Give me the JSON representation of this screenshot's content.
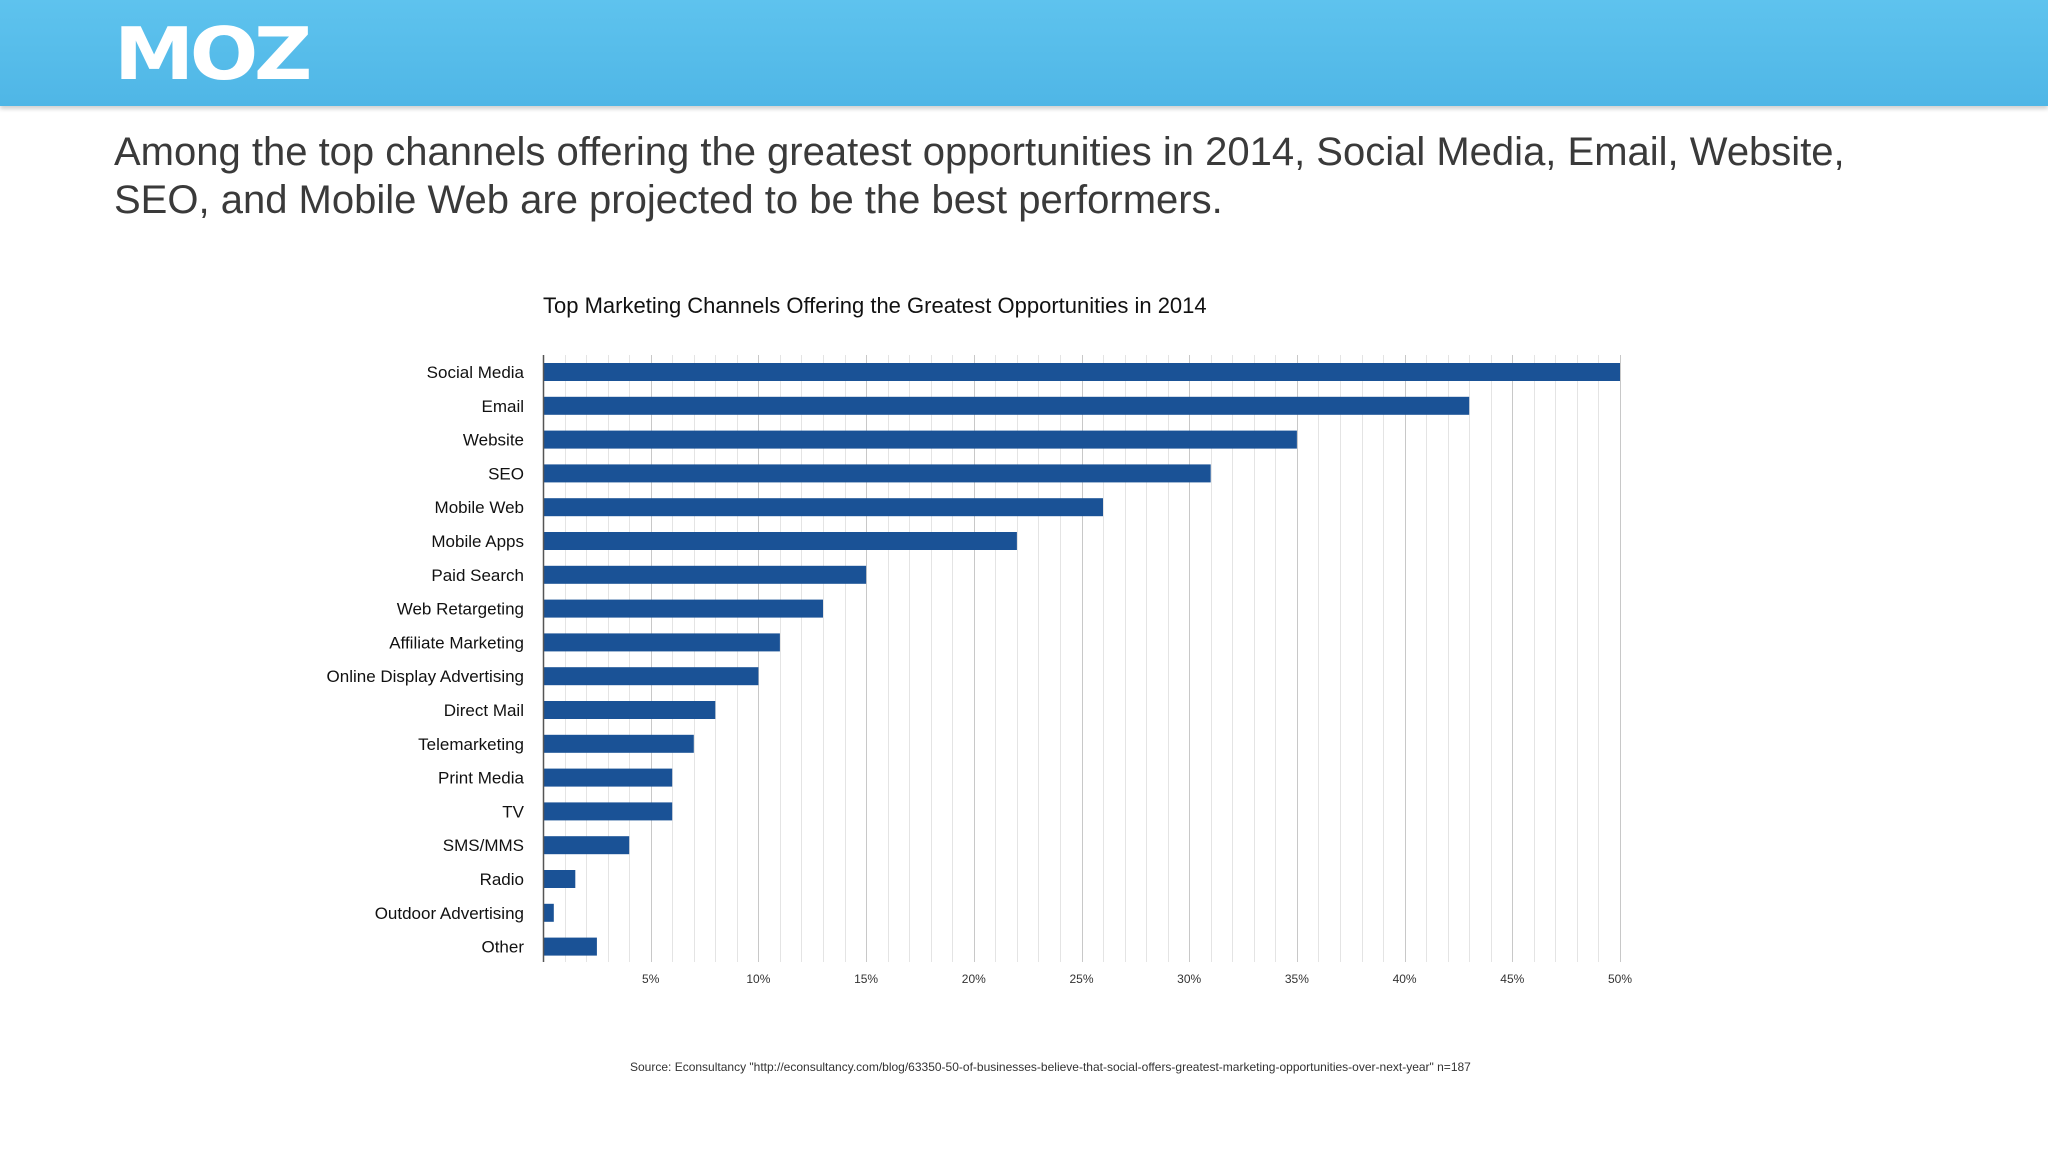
{
  "brand": {
    "logo_text": "MOZ",
    "header_color": "#55bceb"
  },
  "headline": "Among the top channels offering the greatest opportunities in 2014, Social Media, Email, Website, SEO, and Mobile Web are projected to be the best performers.",
  "source": "Source: Econsultancy \"http://econsultancy.com/blog/63350-50-of-businesses-believe-that-social-offers-greatest-marketing-opportunities-over-next-year\" n=187",
  "chart_data": {
    "type": "bar",
    "orientation": "horizontal",
    "title": "Top Marketing Channels Offering the Greatest Opportunities in 2014",
    "categories": [
      "Social Media",
      "Email",
      "Website",
      "SEO",
      "Mobile Web",
      "Mobile Apps",
      "Paid Search",
      "Web Retargeting",
      "Affiliate Marketing",
      "Online Display Advertising",
      "Direct Mail",
      "Telemarketing",
      "Print Media",
      "TV",
      "SMS/MMS",
      "Radio",
      "Outdoor Advertising",
      "Other"
    ],
    "values": [
      50,
      43,
      35,
      31,
      26,
      22,
      15,
      13,
      11,
      10,
      8,
      7,
      6,
      6,
      4,
      1.5,
      0.5,
      2.5
    ],
    "xlim": [
      0,
      50
    ],
    "x_ticks": [
      5,
      10,
      15,
      20,
      25,
      30,
      35,
      40,
      45,
      50
    ],
    "x_tick_labels": [
      "5%",
      "10%",
      "15%",
      "20%",
      "25%",
      "30%",
      "35%",
      "40%",
      "45%",
      "50%"
    ],
    "minor_grid_step": 1,
    "grid": true,
    "bar_color": "#1a5296"
  }
}
